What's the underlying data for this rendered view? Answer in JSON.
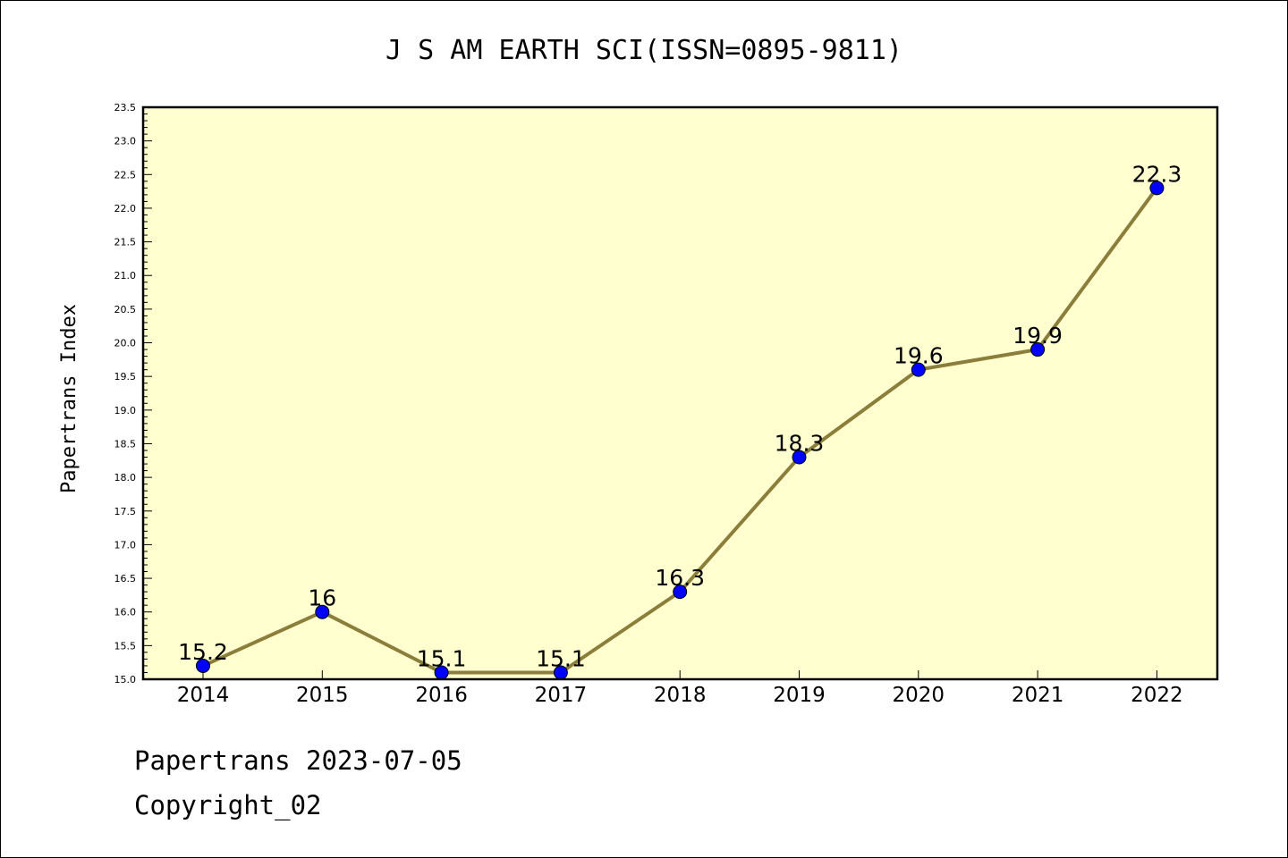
{
  "chart_data": {
    "type": "line",
    "title": "J S AM EARTH SCI(ISSN=0895-9811)",
    "ylabel": "Papertrans Index",
    "xlabel": "",
    "categories": [
      "2014",
      "2015",
      "2016",
      "2017",
      "2018",
      "2019",
      "2020",
      "2021",
      "2022"
    ],
    "values": [
      15.2,
      16,
      15.1,
      15.1,
      16.3,
      18.3,
      19.6,
      19.9,
      22.3
    ],
    "data_labels": [
      "15.2",
      "16",
      "15.1",
      "15.1",
      "16.3",
      "18.3",
      "19.6",
      "19.9",
      "22.3"
    ],
    "ylim": [
      15.0,
      23.5
    ],
    "yticks": [
      "15.0",
      "15.5",
      "16.0",
      "16.5",
      "17.0",
      "17.5",
      "18.0",
      "18.5",
      "19.0",
      "19.5",
      "20.0",
      "20.5",
      "21.0",
      "21.5",
      "22.0",
      "22.5",
      "23.0",
      "23.5"
    ],
    "grid": false,
    "colors": {
      "plot_background": "#ffffd0",
      "line": "#8b7d3a",
      "marker": "#0000ff"
    }
  },
  "footer": {
    "source_line": "Papertrans 2023-07-05",
    "copyright": "Copyright_02"
  }
}
